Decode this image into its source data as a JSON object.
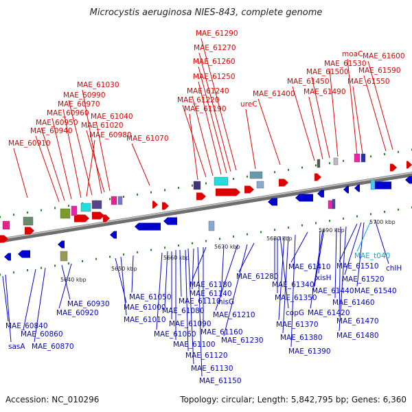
{
  "title": "Microcystis aeruginosa NIES-843, complete genome",
  "footer": {
    "accession": "Accession: NC_010296",
    "summary": "Topology: circular; Length: 5,842,795 bp; Genes: 6,360"
  },
  "colors": {
    "forward": "#dd0000",
    "reverse": "#0000cc",
    "highlight": "#00aadd",
    "backbone": "#909090",
    "dots": "#228822"
  },
  "ticks": [
    "5640 kbp",
    "5650 kbp",
    "5660 kbp",
    "5670 kbp",
    "5680 kbp",
    "5690 kbp",
    "5700 kbp"
  ],
  "labels_top": [
    "MAE_60910",
    "MAE_60940",
    "MAE_60950",
    "MAE_60960",
    "MAE_60970",
    "MAE_60980",
    "MAE_60990",
    "MAE_61030",
    "MAE_61020",
    "MAE_61040",
    "MAE_61070",
    "MAE_61190",
    "MAE_61220",
    "MAE_61240",
    "MAE_61250",
    "MAE_61260",
    "MAE_61270",
    "MAE_61290",
    "ureC",
    "MAE_61400",
    "MAE_61450",
    "MAE_61490",
    "MAE_61500",
    "MAE_61530",
    "moaC",
    "MAE_61550",
    "MAE_61590",
    "MAE_61600"
  ],
  "labels_bottom": [
    "MAE_60840",
    "sasA",
    "MAE_60860",
    "MAE_60870",
    "MAE_60930",
    "MAE_60920",
    "MAE_61000",
    "MAE_61010",
    "MAE_61050",
    "MAE_61060",
    "MAE_61080",
    "MAE_61090",
    "MAE_61100",
    "MAE_61110",
    "MAE_61120",
    "MAE_61130",
    "MAE_61140",
    "MAE_61150",
    "MAE_61160",
    "MAE_61180",
    "hisG",
    "MAE_61210",
    "MAE_61230",
    "MAE_61280",
    "MAE_61340",
    "MAE_61350",
    "copG",
    "MAE_61370",
    "MAE_61380",
    "MAE_61390",
    "MAE_61410",
    "xisH",
    "MAE_61420",
    "MAE_61440",
    "MAE_61460",
    "MAE_61470",
    "MAE_61480",
    "MAE_61510",
    "MAE_61520",
    "MAE_61540",
    "MAE_t040",
    "chlH"
  ]
}
